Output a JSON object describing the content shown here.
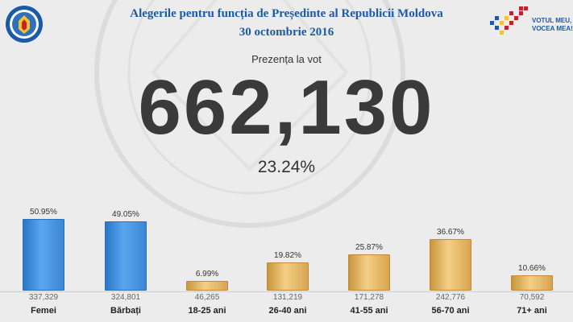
{
  "header": {
    "title": "Alegerile pentru funcția de Președinte al Republicii Moldova",
    "date": "30 octombrie 2016",
    "brand_line1": "VOTUL MEU,",
    "brand_line2": "VOCEA MEA!",
    "cec_logo_icon": "cec-seal-icon",
    "brand_logo_icon": "votul-meu-logo-icon"
  },
  "turnout": {
    "label": "Prezența la vot",
    "count": "662,130",
    "percent": "23.24%"
  },
  "colors": {
    "title_blue": "#1b5aa6",
    "bar_blue": "#3b86d6",
    "bar_gold": "#e2b364"
  },
  "chart_data": {
    "type": "bar",
    "categories": [
      "Femei",
      "Bărbați",
      "18-25 ani",
      "26-40 ani",
      "41-55 ani",
      "56-70 ani",
      "71+ ani"
    ],
    "values": [
      50.95,
      49.05,
      6.99,
      19.82,
      25.87,
      36.67,
      10.66
    ],
    "percent_labels": [
      "50.95%",
      "49.05%",
      "6.99%",
      "19.82%",
      "25.87%",
      "36.67%",
      "10.66%"
    ],
    "counts": [
      "337,329",
      "324,801",
      "46,265",
      "131,219",
      "171,278",
      "242,776",
      "70,592"
    ],
    "bar_colors": [
      "blue",
      "blue",
      "gold",
      "gold",
      "gold",
      "gold",
      "gold"
    ],
    "ylim": [
      0,
      55
    ],
    "grid": false
  }
}
